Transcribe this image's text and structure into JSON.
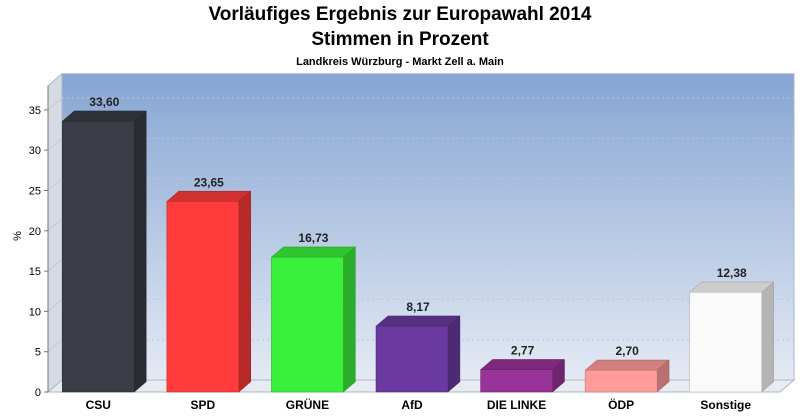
{
  "chart_data": {
    "type": "bar",
    "title": "Vorläufiges Ergebnis zur Europawahl 2014",
    "subtitle": "Stimmen in Prozent",
    "subsubtitle": "Landkreis Würzburg - Markt Zell a. Main",
    "ylabel": "%",
    "xlabel": "",
    "ylim": [
      0,
      38
    ],
    "yticks": [
      0,
      5,
      10,
      15,
      20,
      25,
      30,
      35
    ],
    "grid": true,
    "legend": "none",
    "categories": [
      "CSU",
      "SPD",
      "GRÜNE",
      "AfD",
      "DIE LINKE",
      "ÖDP",
      "Sonstige"
    ],
    "values": [
      33.6,
      23.65,
      16.73,
      8.17,
      2.77,
      2.7,
      12.38
    ],
    "value_labels": [
      "33,60",
      "23,65",
      "16,73",
      "8,17",
      "2,77",
      "2,70",
      "12,38"
    ],
    "colors": [
      "#3a3d46",
      "#ff3b3b",
      "#3bf03b",
      "#6b3aa0",
      "#993399",
      "#ff9b9b",
      "#fafafa"
    ],
    "background_top": "#86a5d3",
    "background_bottom": "#e4eaf4"
  }
}
